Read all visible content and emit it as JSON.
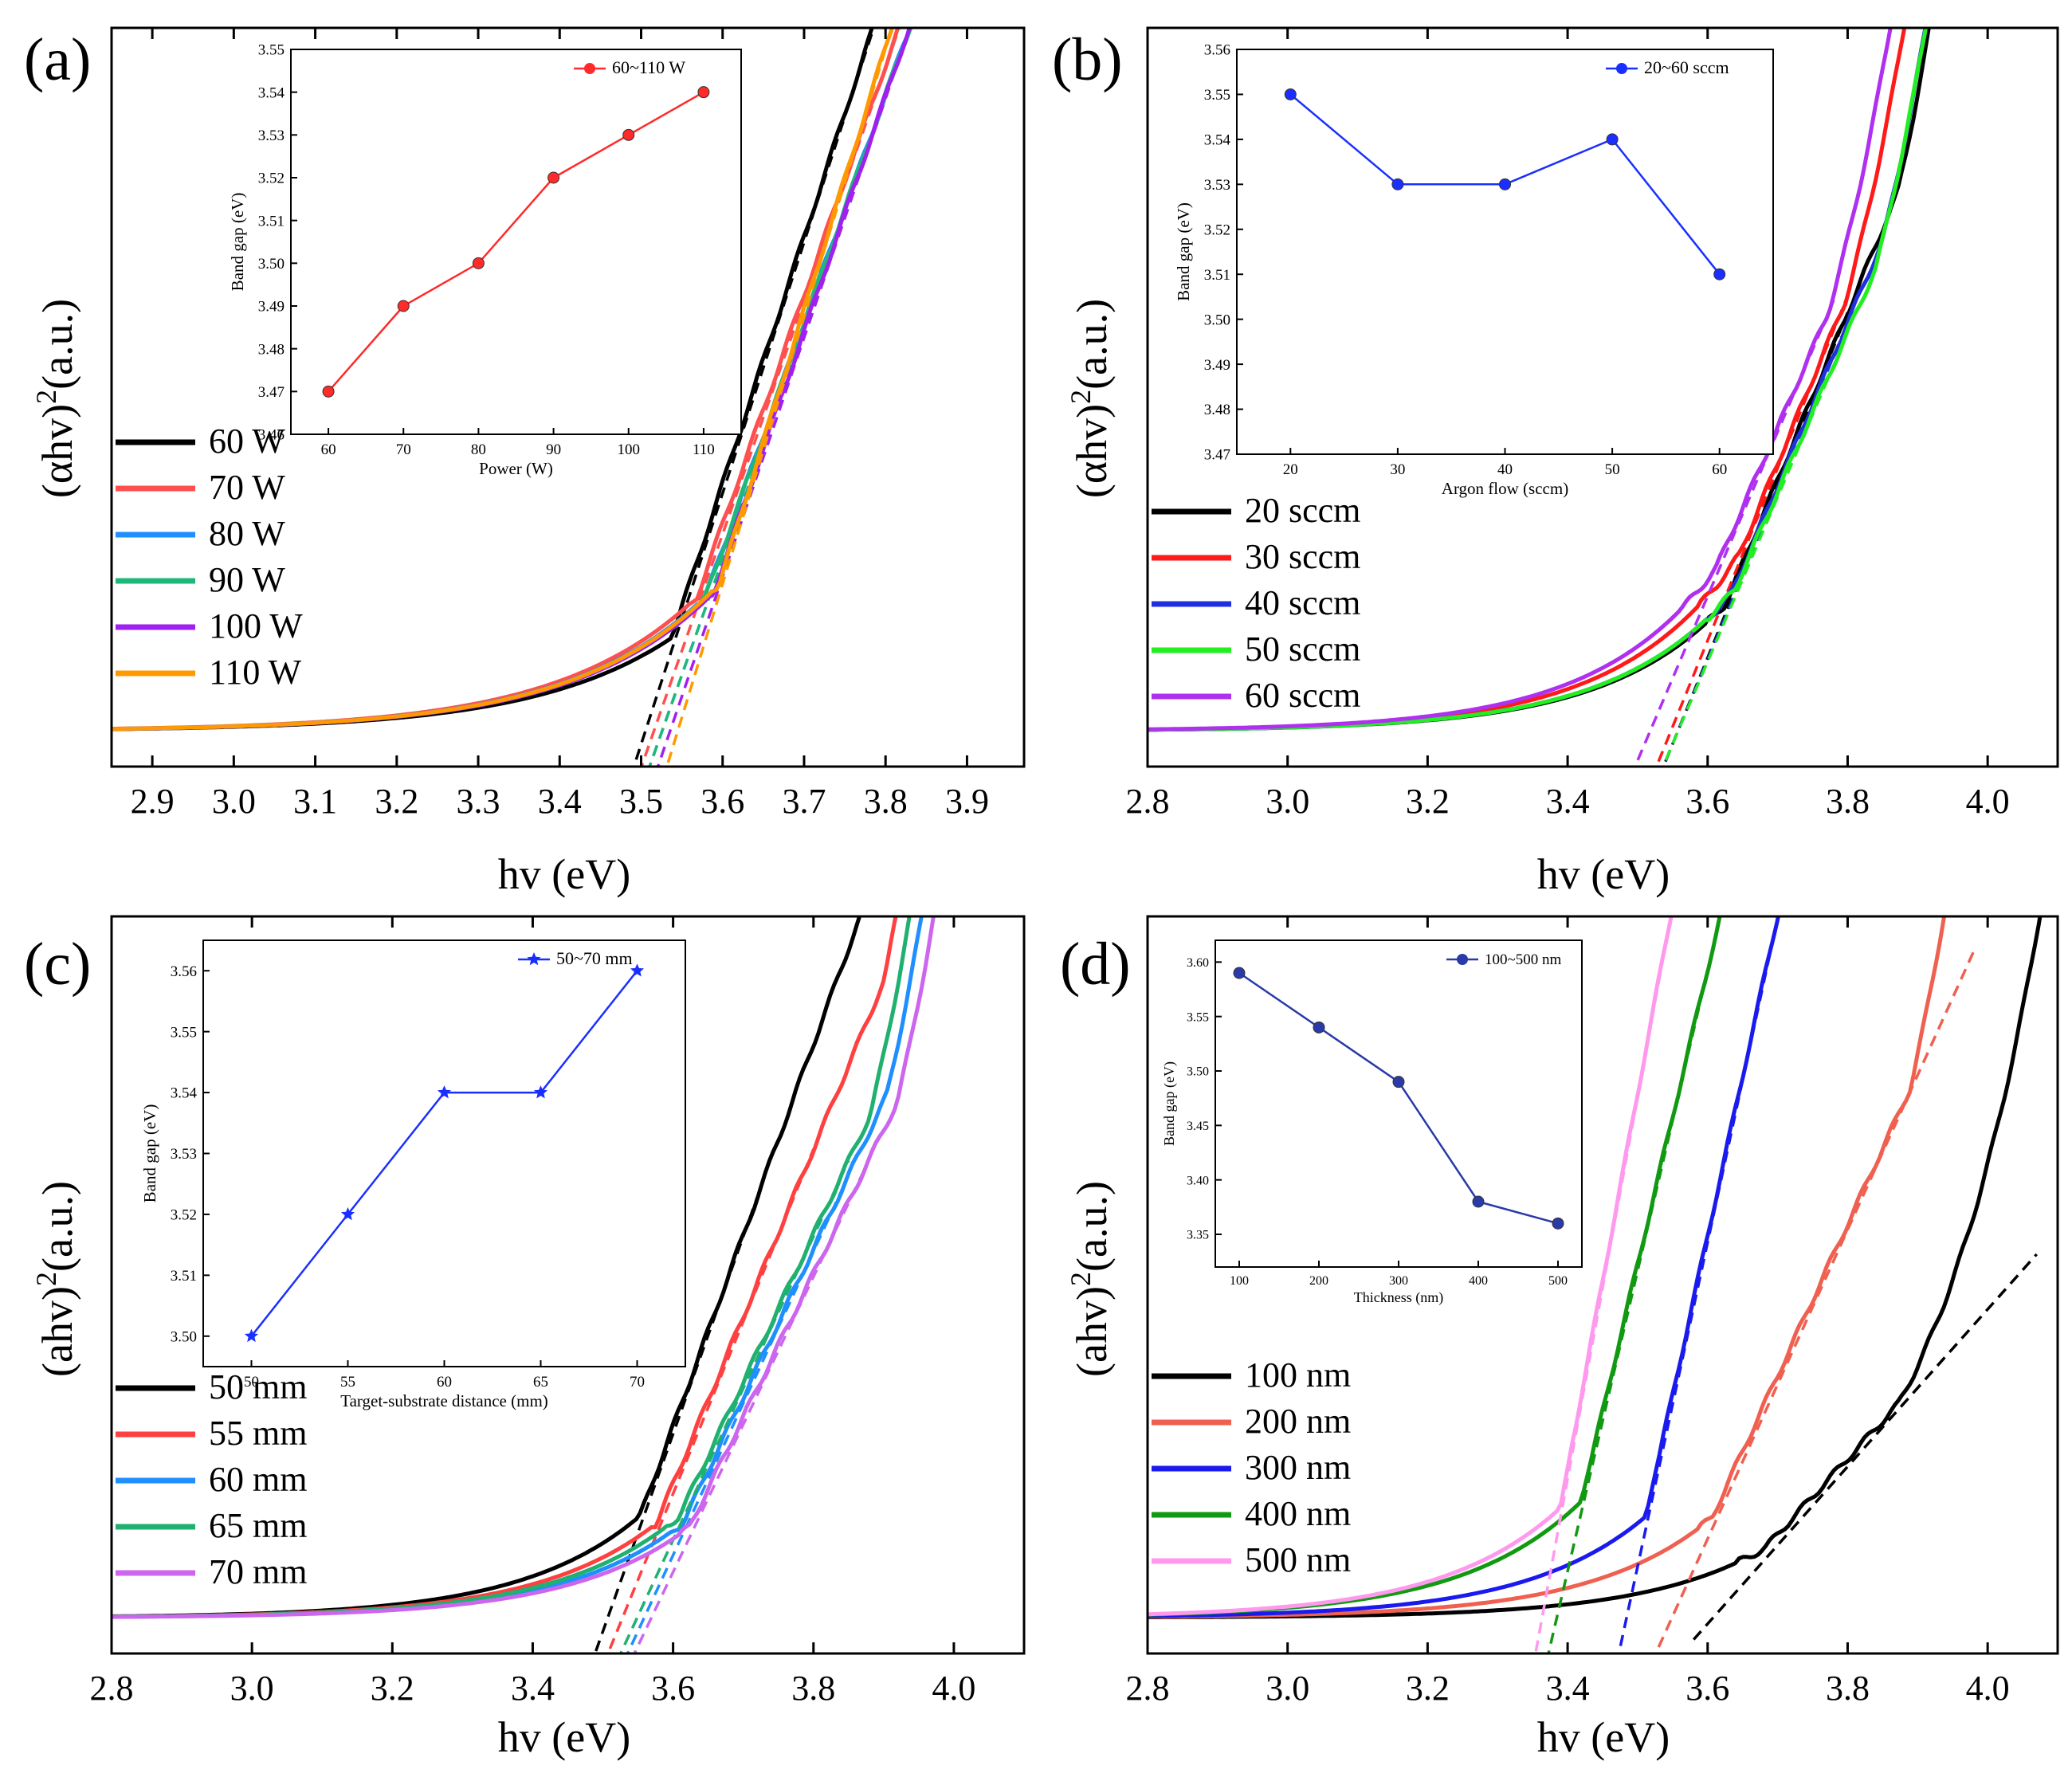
{
  "figure": {
    "panel_labels": [
      "(a)",
      "(b)",
      "(c)",
      "(d)"
    ]
  },
  "chart_data": [
    {
      "id": "a",
      "type": "line",
      "panel_label": "(a)",
      "title": "",
      "xlabel": "hv (eV)",
      "ylabel": "(αhv)²(a.u.)",
      "ylabel_base": "(αhv)",
      "ylabel_sup": "2",
      "ylabel_tail": "(a.u.)",
      "xlim": [
        2.85,
        3.97
      ],
      "ylim": [
        0,
        1
      ],
      "xticks": [
        "2.9",
        "3.0",
        "3.1",
        "3.2",
        "3.3",
        "3.4",
        "3.5",
        "3.6",
        "3.7",
        "3.8",
        "3.9"
      ],
      "xtick_values": [
        2.9,
        3.0,
        3.1,
        3.2,
        3.3,
        3.4,
        3.5,
        3.6,
        3.7,
        3.8,
        3.9
      ],
      "y_tick_labels": false,
      "legend_position": "left",
      "series": [
        {
          "name": "60 W",
          "color": "#000000",
          "edge": 3.5,
          "slope": 3.1,
          "fit_from": 3.48,
          "fit_to": 3.84,
          "k": 0.55
        },
        {
          "name": "70 W",
          "color": "#ff5050",
          "edge": 3.51,
          "slope": 2.88,
          "fit_from": 3.49,
          "fit_to": 3.85,
          "k": 0.7
        },
        {
          "name": "80 W",
          "color": "#1f8fff",
          "edge": 3.52,
          "slope": 2.85,
          "fit_from": 3.5,
          "fit_to": 3.86,
          "k": 0.7
        },
        {
          "name": "90 W",
          "color": "#1fb87a",
          "edge": 3.52,
          "slope": 2.85,
          "fit_from": 3.5,
          "fit_to": 3.86,
          "k": 0.68
        },
        {
          "name": "100 W",
          "color": "#a020f0",
          "edge": 3.53,
          "slope": 2.95,
          "fit_from": 3.51,
          "fit_to": 3.86,
          "k": 0.72
        },
        {
          "name": "110 W",
          "color": "#ff9900",
          "edge": 3.54,
          "slope": 3.3,
          "fit_from": 3.52,
          "fit_to": 3.84,
          "k": 0.78
        }
      ],
      "inset": {
        "xlabel": "Power (W)",
        "ylabel": "Band gap (eV)",
        "legend": "60~110 W",
        "color": "#ff2a2a",
        "marker": "circle",
        "x": [
          60,
          70,
          80,
          90,
          100,
          110
        ],
        "y": [
          3.47,
          3.49,
          3.5,
          3.52,
          3.53,
          3.54
        ],
        "xlim": [
          55,
          115
        ],
        "ylim": [
          3.46,
          3.55
        ],
        "xticks": [
          60,
          70,
          80,
          90,
          100,
          110
        ],
        "yticks": [
          "3.46",
          "3.47",
          "3.48",
          "3.49",
          "3.50",
          "3.51",
          "3.52",
          "3.53",
          "3.54",
          "3.55"
        ]
      }
    },
    {
      "id": "b",
      "type": "line",
      "panel_label": "(b)",
      "title": "",
      "xlabel": "hv (eV)",
      "ylabel": "(αhv)²(a.u.)",
      "ylabel_base": "(αhv)",
      "ylabel_sup": "2",
      "ylabel_tail": "(a.u.)",
      "xlim": [
        2.8,
        4.1
      ],
      "ylim": [
        0,
        1
      ],
      "xticks": [
        "2.8",
        "3.0",
        "3.2",
        "3.4",
        "3.6",
        "3.8",
        "4.0"
      ],
      "xtick_values": [
        2.8,
        3.0,
        3.2,
        3.4,
        3.6,
        3.8,
        4.0
      ],
      "y_tick_labels": false,
      "legend_position": "left",
      "series": [
        {
          "name": "20 sccm",
          "color": "#000000",
          "edge": 3.55,
          "slope": 2.1,
          "fit_from": 3.53,
          "fit_to": 3.8,
          "k": 0.6
        },
        {
          "name": "30 sccm",
          "color": "#ff1a1a",
          "edge": 3.54,
          "slope": 2.1,
          "fit_from": 3.52,
          "fit_to": 3.8,
          "k": 0.7
        },
        {
          "name": "40 sccm",
          "color": "#2030e0",
          "edge": 3.55,
          "slope": 2.05,
          "fit_from": 3.53,
          "fit_to": 3.8,
          "k": 0.62
        },
        {
          "name": "50 sccm",
          "color": "#22ee22",
          "edge": 3.55,
          "slope": 2.0,
          "fit_from": 3.53,
          "fit_to": 3.8,
          "k": 0.62
        },
        {
          "name": "60 sccm",
          "color": "#b030f0",
          "edge": 3.51,
          "slope": 2.0,
          "fit_from": 3.49,
          "fit_to": 3.78,
          "k": 0.66
        }
      ],
      "inset": {
        "xlabel": "Argon flow (sccm)",
        "ylabel": "Band gap (eV)",
        "legend": "20~60 sccm",
        "color": "#1a2fff",
        "marker": "circle",
        "x": [
          20,
          30,
          40,
          50,
          60
        ],
        "y": [
          3.55,
          3.53,
          3.53,
          3.54,
          3.51
        ],
        "xlim": [
          15,
          65
        ],
        "ylim": [
          3.47,
          3.56
        ],
        "xticks": [
          20,
          30,
          40,
          50,
          60
        ],
        "yticks": [
          "3.47",
          "3.48",
          "3.49",
          "3.50",
          "3.51",
          "3.52",
          "3.53",
          "3.54",
          "3.55",
          "3.56"
        ]
      }
    },
    {
      "id": "c",
      "type": "line",
      "panel_label": "(c)",
      "title": "",
      "xlabel": "hv (eV)",
      "ylabel": "(ahv)²(a.u.)",
      "ylabel_base": "(ahv)",
      "ylabel_sup": "2",
      "ylabel_tail": "(a.u.)",
      "xlim": [
        2.8,
        4.1
      ],
      "ylim": [
        0,
        1
      ],
      "xticks": [
        "2.8",
        "3.0",
        "3.2",
        "3.4",
        "3.6",
        "3.8",
        "4.0"
      ],
      "xtick_values": [
        2.8,
        3.0,
        3.2,
        3.4,
        3.6,
        3.8,
        4.0
      ],
      "y_tick_labels": false,
      "legend_position": "left",
      "series": [
        {
          "name": "50 mm",
          "color": "#000000",
          "edge": 3.5,
          "slope": 2.4,
          "fit_from": 3.49,
          "fit_to": 3.72,
          "k": 0.55
        },
        {
          "name": "55 mm",
          "color": "#ff4040",
          "edge": 3.52,
          "slope": 2.1,
          "fit_from": 3.51,
          "fit_to": 3.8,
          "k": 0.5
        },
        {
          "name": "60 mm",
          "color": "#1f8fff",
          "edge": 3.55,
          "slope": 1.85,
          "fit_from": 3.53,
          "fit_to": 3.85,
          "k": 0.48
        },
        {
          "name": "65 mm",
          "color": "#20b070",
          "edge": 3.54,
          "slope": 1.85,
          "fit_from": 3.52,
          "fit_to": 3.85,
          "k": 0.5
        },
        {
          "name": "70 mm",
          "color": "#cc66ee",
          "edge": 3.56,
          "slope": 1.8,
          "fit_from": 3.54,
          "fit_to": 3.88,
          "k": 0.46
        }
      ],
      "inset": {
        "xlabel": "Target-substrate distance (mm)",
        "ylabel": "Band gap (eV)",
        "legend": "50~70 mm",
        "color": "#1a2fff",
        "marker": "star",
        "x": [
          50,
          55,
          60,
          65,
          70
        ],
        "y": [
          3.5,
          3.52,
          3.54,
          3.54,
          3.56
        ],
        "xlim": [
          47.5,
          72.5
        ],
        "ylim": [
          3.495,
          3.565
        ],
        "xticks": [
          50,
          55,
          60,
          65,
          70
        ],
        "yticks": [
          "3.50",
          "3.51",
          "3.52",
          "3.53",
          "3.54",
          "3.55",
          "3.56"
        ]
      }
    },
    {
      "id": "d",
      "type": "line",
      "panel_label": "(d)",
      "title": "",
      "xlabel": "hv (eV)",
      "ylabel": "(ahv)²(a.u.)",
      "ylabel_base": "(ahv)",
      "ylabel_sup": "2",
      "ylabel_tail": "(a.u.)",
      "xlim": [
        2.8,
        4.1
      ],
      "ylim": [
        0,
        1
      ],
      "xticks": [
        "2.8",
        "3.0",
        "3.2",
        "3.4",
        "3.6",
        "3.8",
        "4.0"
      ],
      "xtick_values": [
        2.8,
        3.0,
        3.2,
        3.4,
        3.6,
        3.8,
        4.0
      ],
      "y_tick_labels": false,
      "legend_position": "left",
      "series": [
        {
          "name": "100 nm",
          "color": "#000000",
          "edge": 3.59,
          "slope": 0.95,
          "fit_from": 3.58,
          "fit_to": 4.07,
          "k": 0.3
        },
        {
          "name": "200 nm",
          "color": "#f06050",
          "edge": 3.54,
          "slope": 1.9,
          "fit_from": 3.53,
          "fit_to": 3.98,
          "k": 0.5
        },
        {
          "name": "300 nm",
          "color": "#1a1aee",
          "edge": 3.48,
          "slope": 4.0,
          "fit_from": 3.47,
          "fit_to": 3.73,
          "k": 0.62
        },
        {
          "name": "400 nm",
          "color": "#119911",
          "edge": 3.38,
          "slope": 3.7,
          "fit_from": 3.37,
          "fit_to": 3.62,
          "k": 0.68
        },
        {
          "name": "500 nm",
          "color": "#ff99ee",
          "edge": 3.36,
          "slope": 4.7,
          "fit_from": 3.35,
          "fit_to": 3.55,
          "k": 0.68
        }
      ],
      "inset": {
        "xlabel": "Thickness (nm)",
        "ylabel": "Band gap (eV)",
        "legend": "100~500 nm",
        "color": "#2a3aa8",
        "marker": "circle",
        "x": [
          100,
          200,
          300,
          400,
          500
        ],
        "y": [
          3.59,
          3.54,
          3.49,
          3.38,
          3.36
        ],
        "xlim": [
          70,
          530
        ],
        "ylim": [
          3.32,
          3.62
        ],
        "xticks": [
          100,
          200,
          300,
          400,
          500
        ],
        "yticks": [
          "3.35",
          "3.40",
          "3.45",
          "3.50",
          "3.55",
          "3.60"
        ]
      }
    }
  ]
}
